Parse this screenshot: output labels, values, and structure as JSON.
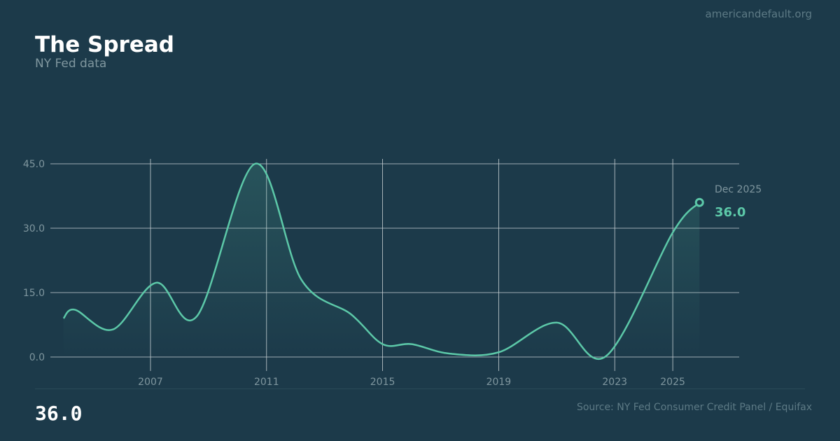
{
  "header": {
    "site": "americandefault.org",
    "title": "The Spread",
    "subtitle": "NY Fed data"
  },
  "footer": {
    "value": "36.0",
    "source": "Source: NY Fed Consumer Credit Panel / Equifax"
  },
  "chart_data": {
    "type": "line",
    "title": "The Spread",
    "xlabel": "",
    "ylabel": "",
    "ylim": [
      0,
      45
    ],
    "yticks": [
      "0.0",
      "15.0",
      "30.0",
      "45.0"
    ],
    "xticks": [
      "2007",
      "2011",
      "2015",
      "2019",
      "2023",
      "2025"
    ],
    "grid": true,
    "line_color": "#5cc8a8",
    "x": [
      2004.0,
      2004.4,
      2005.7,
      2007.2,
      2008.6,
      2010.6,
      2012.2,
      2013.9,
      2015.0,
      2016.0,
      2017.3,
      2019.0,
      2021.0,
      2022.7,
      2025.0,
      2025.92
    ],
    "values": [
      9.0,
      11.0,
      6.4,
      17.3,
      9.5,
      45.0,
      18.0,
      10.0,
      3.0,
      3.0,
      0.8,
      1.1,
      8.0,
      0.2,
      29.0,
      36.0
    ],
    "annotation": {
      "label": "Dec 2025",
      "value": "36.0"
    }
  }
}
